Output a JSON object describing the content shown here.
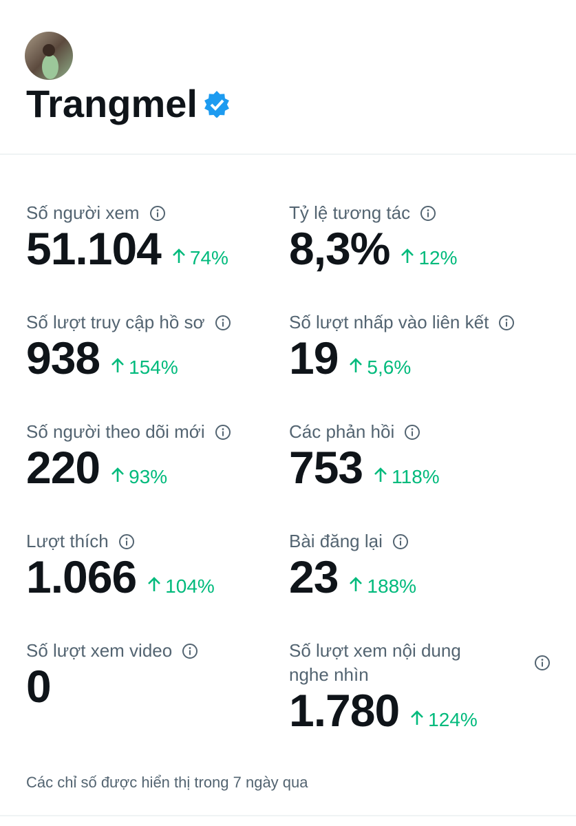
{
  "profile": {
    "name": "Trangmel"
  },
  "metrics": [
    {
      "label": "Số người xem",
      "value": "51.104",
      "change": "74%"
    },
    {
      "label": "Tỷ lệ tương tác",
      "value": "8,3%",
      "change": "12%"
    },
    {
      "label": "Số lượt truy cập hồ sơ",
      "value": "938",
      "change": "154%"
    },
    {
      "label": "Số lượt nhấp vào liên kết",
      "value": "19",
      "change": "5,6%"
    },
    {
      "label": "Số người theo dõi mới",
      "value": "220",
      "change": "93%"
    },
    {
      "label": "Các phản hồi",
      "value": "753",
      "change": "118%"
    },
    {
      "label": "Lượt thích",
      "value": "1.066",
      "change": "104%"
    },
    {
      "label": "Bài đăng lại",
      "value": "23",
      "change": "188%"
    },
    {
      "label": "Số lượt xem video",
      "value": "0"
    },
    {
      "label": "Số lượt xem nội dung nghe nhìn",
      "value": "1.780",
      "change": "124%"
    }
  ],
  "footer": "Các chỉ số được hiển thị trong 7 ngày qua"
}
